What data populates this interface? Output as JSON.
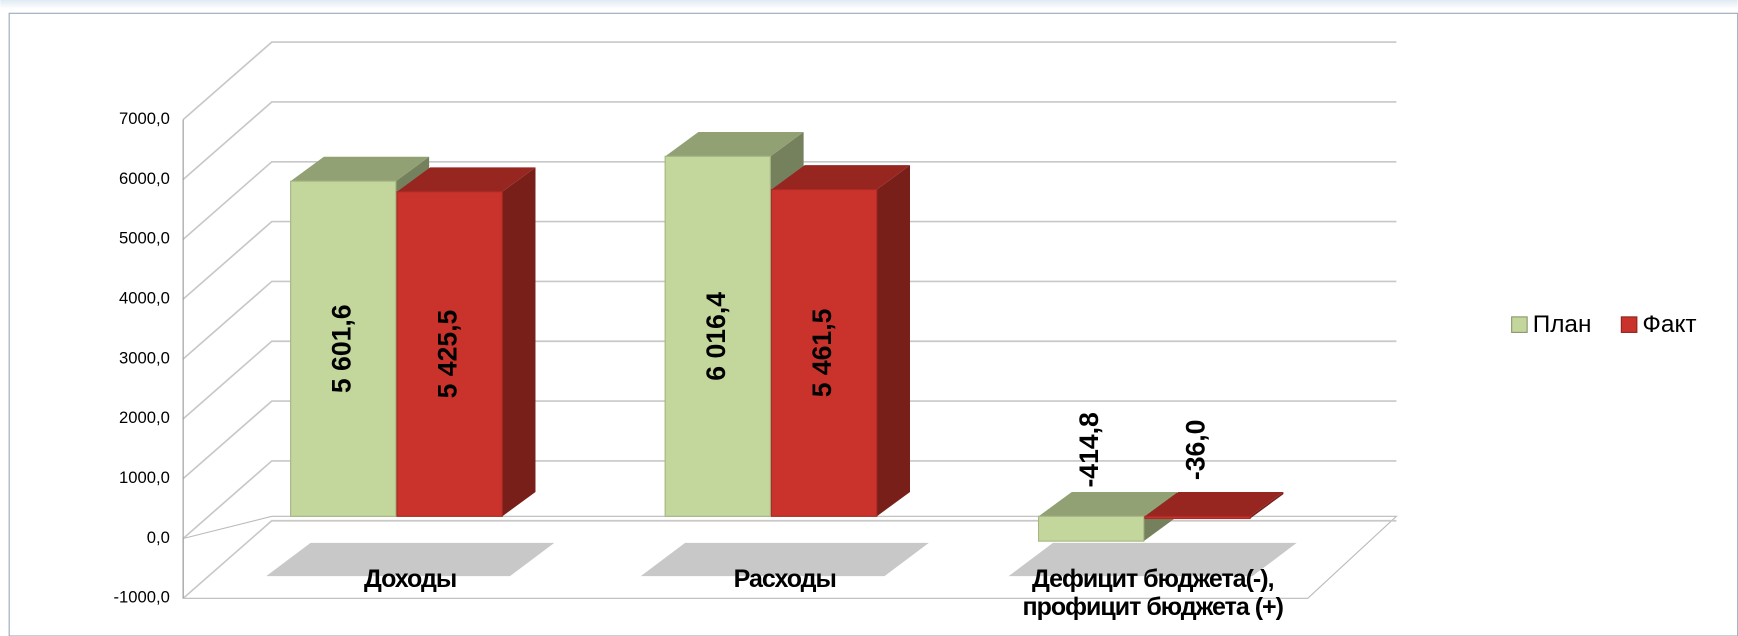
{
  "chart_data": {
    "type": "bar3d",
    "categories": [
      "Доходы",
      "Расходы",
      "Дефицит бюджета(-), профицит бюджета (+)"
    ],
    "series": [
      {
        "name": "План",
        "color": "#c3d69b",
        "values": [
          5601.6,
          6016.4,
          -414.8
        ],
        "value_labels": [
          "5 601,6",
          "6 016,4",
          "-414,8"
        ]
      },
      {
        "name": "Факт",
        "color": "#c9332c",
        "values": [
          5425.5,
          5461.5,
          -36.0
        ],
        "value_labels": [
          "5 425,5",
          "5 461,5",
          "-36,0"
        ]
      }
    ],
    "ylim": [
      -1000,
      7000
    ],
    "yticks": [
      {
        "value": -1000,
        "label": "-1000,0"
      },
      {
        "value": 0,
        "label": "0,0"
      },
      {
        "value": 1000,
        "label": "1000,0"
      },
      {
        "value": 2000,
        "label": "2000,0"
      },
      {
        "value": 3000,
        "label": "3000,0"
      },
      {
        "value": 4000,
        "label": "4000,0"
      },
      {
        "value": 5000,
        "label": "5000,0"
      },
      {
        "value": 6000,
        "label": "6000,0"
      },
      {
        "value": 7000,
        "label": "7000,0"
      }
    ],
    "grid": true,
    "legend": "right"
  }
}
